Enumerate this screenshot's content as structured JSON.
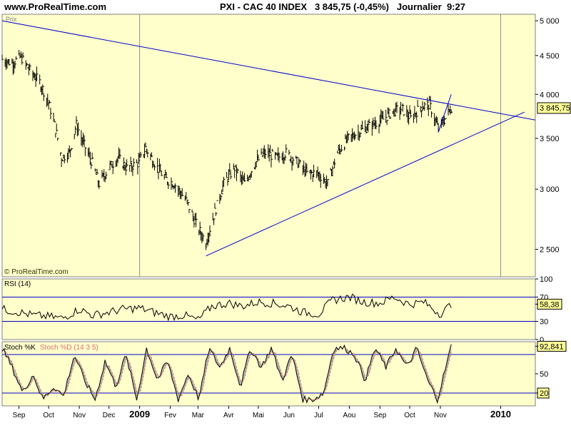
{
  "header": {
    "site": "www.ProRealTime.com",
    "instrument": "PXI - CAC 40 INDEX",
    "last_change": "3 845,75 (-0,45%)",
    "period": "Journalier",
    "time": "9:27"
  },
  "colors": {
    "panel_bg": "#ffffcc",
    "line": "#0000cc",
    "bars": "#000000",
    "stoch_d": "#e07070",
    "stoch_fill": "#a0a0a0"
  },
  "chart_data": [
    {
      "type": "bar",
      "title": "Prix",
      "watermark": "© ProRealTime.com",
      "scale": "log",
      "ylim": [
        2300,
        5100
      ],
      "yticks": [
        "5 000",
        "4 500",
        "4 000",
        "3 500",
        "3 000",
        "2 500"
      ],
      "ytick_values": [
        5000,
        4500,
        4000,
        3500,
        3000,
        2500
      ],
      "last_value_label": "3 845,75",
      "last_value": 3845.75,
      "x_labels": [
        "Sep",
        "Oct",
        "Nov",
        "Dec",
        "2009",
        "Fev",
        "Mar",
        "Avr",
        "Mai",
        "Jun",
        "Jul",
        "Aou",
        "Sep",
        "Oct",
        "Nov",
        "2010"
      ],
      "x_label_dates": [
        "2008-09-01",
        "2008-10-01",
        "2008-11-01",
        "2008-12-01",
        "2009-01-01",
        "2009-02-01",
        "2009-03-01",
        "2009-04-01",
        "2009-05-01",
        "2009-06-01",
        "2009-07-01",
        "2009-08-01",
        "2009-09-01",
        "2009-10-01",
        "2009-11-01",
        "2010-01-01"
      ],
      "x_range": [
        "2008-08-15",
        "2010-02-05"
      ],
      "year_markers": [
        "2009-01-01",
        "2010-01-01"
      ],
      "close_series": {
        "dates": [
          "2008-08-15",
          "2008-08-25",
          "2008-09-03",
          "2008-09-12",
          "2008-09-22",
          "2008-10-01",
          "2008-10-08",
          "2008-10-14",
          "2008-10-22",
          "2008-10-29",
          "2008-11-05",
          "2008-11-14",
          "2008-11-21",
          "2008-12-01",
          "2008-12-10",
          "2008-12-19",
          "2008-12-31",
          "2009-01-07",
          "2009-01-16",
          "2009-01-26",
          "2009-02-05",
          "2009-02-17",
          "2009-02-27",
          "2009-03-09",
          "2009-03-18",
          "2009-03-27",
          "2009-04-07",
          "2009-04-17",
          "2009-04-28",
          "2009-05-08",
          "2009-05-20",
          "2009-05-29",
          "2009-06-10",
          "2009-06-19",
          "2009-06-30",
          "2009-07-10",
          "2009-07-20",
          "2009-07-31",
          "2009-08-12",
          "2009-08-24",
          "2009-09-03",
          "2009-09-14",
          "2009-09-23",
          "2009-10-02",
          "2009-10-12",
          "2009-10-21",
          "2009-10-30",
          "2009-11-06",
          "2009-11-12"
        ],
        "values": [
          4450,
          4400,
          4480,
          4300,
          4150,
          3900,
          3600,
          3300,
          3350,
          3650,
          3450,
          3250,
          3050,
          3200,
          3300,
          3200,
          3250,
          3400,
          3250,
          3100,
          3050,
          2900,
          2700,
          2550,
          2800,
          3050,
          3200,
          3050,
          3250,
          3350,
          3300,
          3350,
          3250,
          3150,
          3150,
          3050,
          3350,
          3500,
          3580,
          3650,
          3700,
          3800,
          3830,
          3720,
          3850,
          3880,
          3600,
          3720,
          3845
        ]
      },
      "trendlines": [
        {
          "name": "resistance",
          "start": [
            "2008-08-15",
            5000
          ],
          "end": [
            "2010-02-05",
            3700
          ]
        },
        {
          "name": "support",
          "start": [
            "2009-03-09",
            2450
          ],
          "end": [
            "2010-01-25",
            3790
          ]
        },
        {
          "name": "short-term channel",
          "start": [
            "2009-10-30",
            3570
          ],
          "end": [
            "2009-11-12",
            4000
          ]
        }
      ]
    },
    {
      "type": "line",
      "title": "RSI (14)",
      "ylim": [
        0,
        100
      ],
      "yticks": [
        "100",
        "70",
        "58,38",
        "30",
        "0"
      ],
      "ytick_values": [
        100,
        70,
        58.38,
        30,
        0
      ],
      "levels": [
        70,
        30
      ],
      "last_value": 58.38,
      "series": {
        "dates": [
          "2008-08-15",
          "2008-09-01",
          "2008-09-15",
          "2008-10-01",
          "2008-10-15",
          "2008-11-01",
          "2008-11-15",
          "2008-12-01",
          "2008-12-15",
          "2009-01-01",
          "2009-01-15",
          "2009-02-01",
          "2009-02-15",
          "2009-03-01",
          "2009-03-15",
          "2009-04-01",
          "2009-04-15",
          "2009-05-01",
          "2009-05-15",
          "2009-06-01",
          "2009-06-15",
          "2009-07-01",
          "2009-07-15",
          "2009-08-01",
          "2009-08-15",
          "2009-09-01",
          "2009-09-15",
          "2009-10-01",
          "2009-10-15",
          "2009-11-01",
          "2009-11-12"
        ],
        "values": [
          50,
          45,
          40,
          38,
          35,
          50,
          40,
          45,
          50,
          52,
          45,
          38,
          40,
          32,
          55,
          60,
          55,
          62,
          60,
          55,
          45,
          42,
          65,
          70,
          62,
          60,
          70,
          58,
          62,
          42,
          58
        ]
      }
    },
    {
      "type": "line",
      "title": "Stoch %K",
      "title2": "Stoch %D (14 3 5)",
      "ylim": [
        0,
        100
      ],
      "yticks": [
        "92,841",
        "50",
        "20"
      ],
      "ytick_values": [
        92.841,
        50,
        20
      ],
      "levels": [
        80,
        20
      ],
      "last_value": 92.841,
      "k_series": {
        "dates": [
          "2008-08-15",
          "2008-08-25",
          "2008-09-05",
          "2008-09-15",
          "2008-09-25",
          "2008-10-06",
          "2008-10-16",
          "2008-10-27",
          "2008-11-06",
          "2008-11-17",
          "2008-11-27",
          "2008-12-08",
          "2008-12-18",
          "2008-12-29",
          "2009-01-08",
          "2009-01-19",
          "2009-01-29",
          "2009-02-09",
          "2009-02-19",
          "2009-03-02",
          "2009-03-12",
          "2009-03-23",
          "2009-04-02",
          "2009-04-13",
          "2009-04-23",
          "2009-05-04",
          "2009-05-14",
          "2009-05-25",
          "2009-06-04",
          "2009-06-15",
          "2009-06-25",
          "2009-07-06",
          "2009-07-16",
          "2009-07-27",
          "2009-08-06",
          "2009-08-17",
          "2009-08-27",
          "2009-09-07",
          "2009-09-17",
          "2009-09-28",
          "2009-10-08",
          "2009-10-19",
          "2009-10-29",
          "2009-11-12"
        ],
        "values": [
          90,
          60,
          20,
          50,
          10,
          30,
          15,
          80,
          40,
          10,
          70,
          30,
          80,
          10,
          90,
          40,
          70,
          10,
          50,
          10,
          90,
          60,
          90,
          30,
          90,
          60,
          90,
          40,
          80,
          10,
          10,
          20,
          90,
          90,
          80,
          40,
          90,
          60,
          90,
          60,
          90,
          40,
          10,
          93
        ]
      }
    }
  ]
}
